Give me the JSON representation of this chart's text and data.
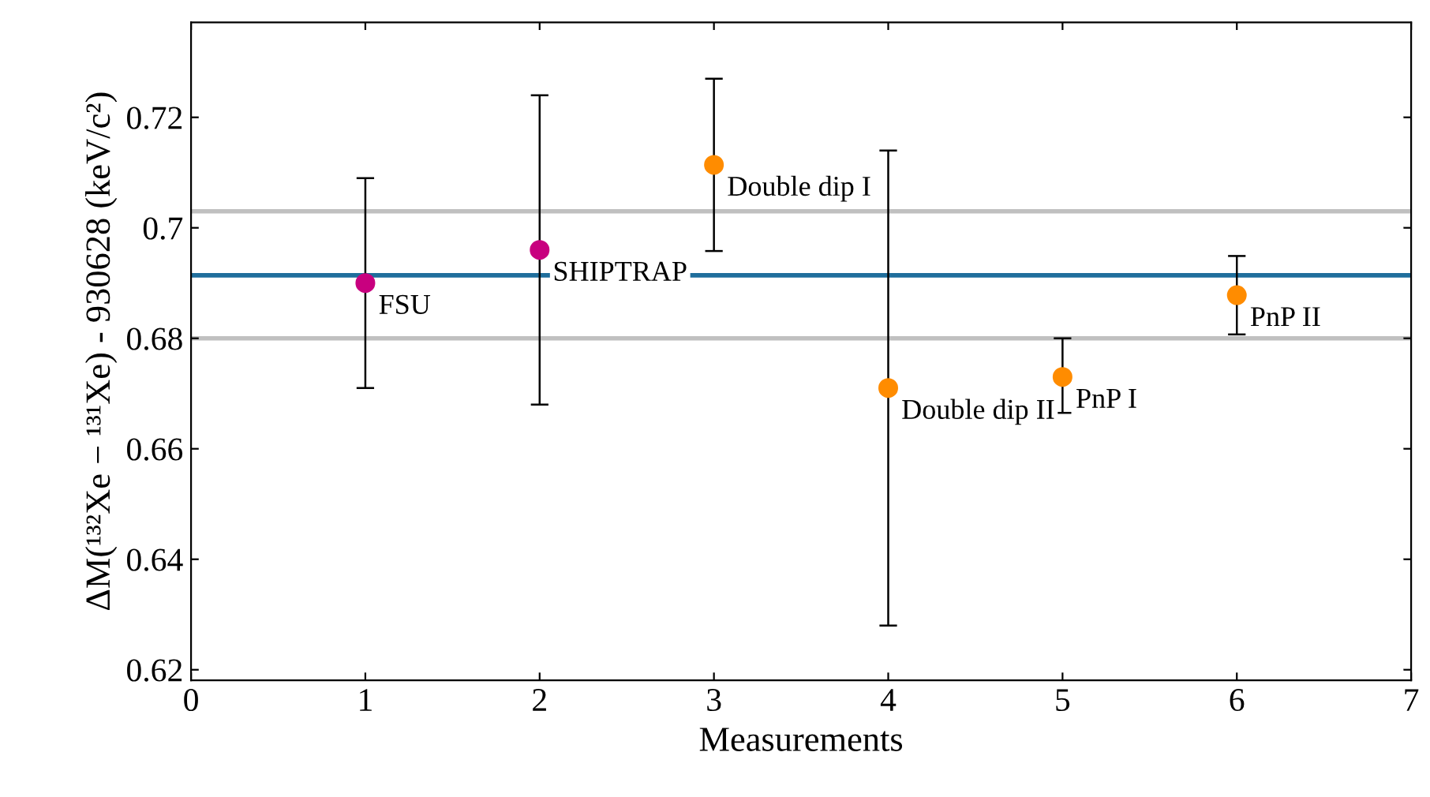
{
  "chart_data": {
    "type": "scatter",
    "xlabel": "Measurements",
    "ylabel": "ΔM(¹³²Xe − ¹³¹Xe) - 930628 (keV/c²)",
    "series": [
      {
        "color": "#c8007f",
        "x": [
          1,
          2
        ],
        "values": [
          0.69,
          0.696
        ],
        "errors": [
          [
            0.671,
            0.709
          ],
          [
            0.668,
            0.724
          ]
        ],
        "value_labels": [
          "FSU",
          "SHIPTRAP"
        ]
      },
      {
        "color": "#ff8c00",
        "x": [
          3,
          4,
          5,
          6
        ],
        "values": [
          0.7114,
          0.671,
          0.673,
          0.6878
        ],
        "errors": [
          [
            0.6958,
            0.727
          ],
          [
            0.628,
            0.714
          ],
          [
            0.6665,
            0.68
          ],
          [
            0.6807,
            0.6949
          ]
        ],
        "value_labels": [
          "Double dip I",
          "Double dip II",
          "PnP I",
          "PnP II"
        ]
      }
    ],
    "ref_lines": [
      {
        "axis": "y",
        "value": 0.6914,
        "color": "#1f6e9c"
      },
      {
        "axis": "y",
        "value": 0.703,
        "color": "#c0c0c0"
      },
      {
        "axis": "y",
        "value": 0.68,
        "color": "#c0c0c0"
      }
    ],
    "xlim": [
      0,
      7
    ],
    "xticks": [
      0,
      1,
      2,
      3,
      4,
      5,
      6,
      7
    ],
    "ylim": [
      0.6181,
      0.7372
    ],
    "yticks": [
      0.62,
      0.64,
      0.66,
      0.68,
      0.7,
      0.72
    ],
    "marker": "circle",
    "grid": false,
    "legend": false
  }
}
